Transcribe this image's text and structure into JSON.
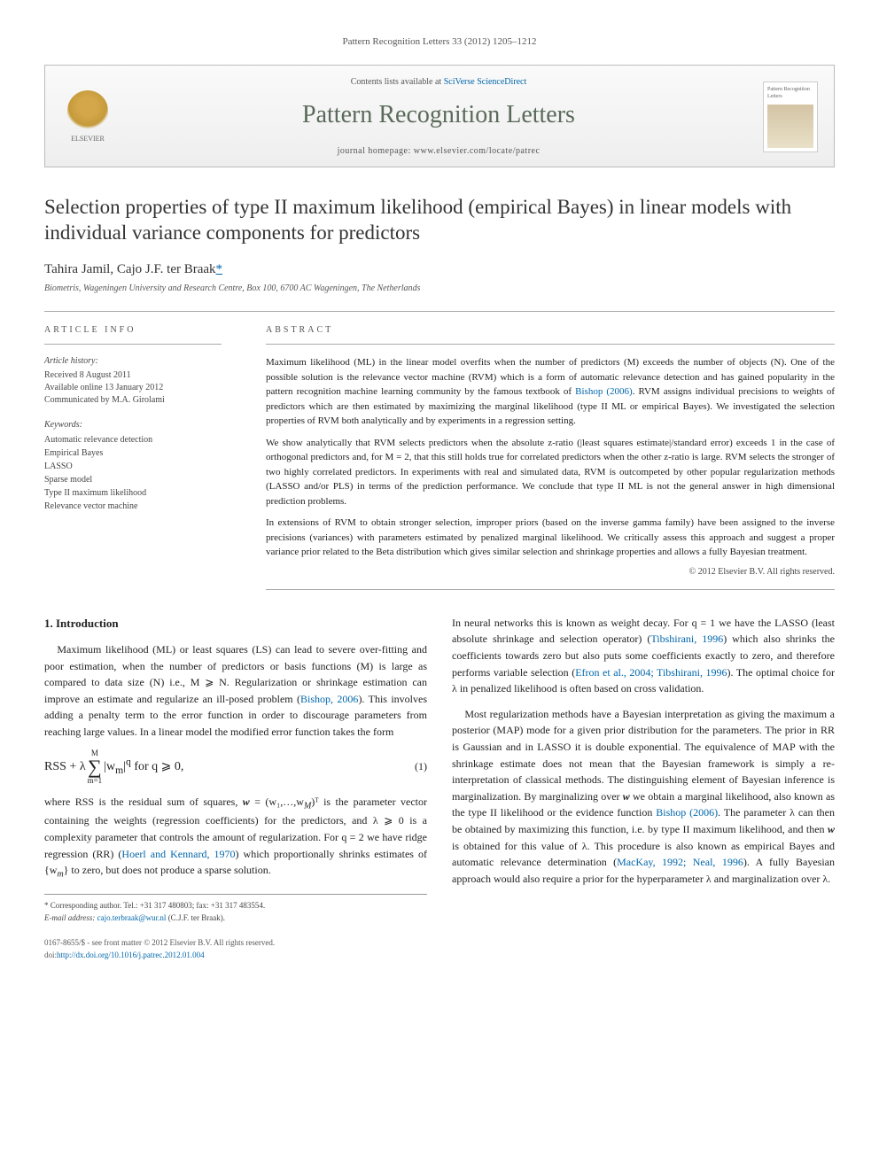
{
  "citation": "Pattern Recognition Letters 33 (2012) 1205–1212",
  "header": {
    "contents_prefix": "Contents lists available at ",
    "contents_link": "SciVerse ScienceDirect",
    "journal": "Pattern Recognition Letters",
    "homepage_label": "journal homepage: www.elsevier.com/locate/patrec",
    "publisher_logo": "ELSEVIER",
    "cover_label": "Pattern Recognition Letters"
  },
  "title": "Selection properties of type II maximum likelihood (empirical Bayes) in linear models with individual variance components for predictors",
  "authors": "Tahira Jamil, Cajo J.F. ter Braak",
  "corr_marker": "*",
  "affiliation": "Biometris, Wageningen University and Research Centre, Box 100, 6700 AC Wageningen, The Netherlands",
  "article_info_head": "ARTICLE INFO",
  "abstract_head": "ABSTRACT",
  "history_label": "Article history:",
  "history": {
    "received": "Received 8 August 2011",
    "online": "Available online 13 January 2012",
    "communicated": "Communicated by M.A. Girolami"
  },
  "keywords_label": "Keywords:",
  "keywords": [
    "Automatic relevance detection",
    "Empirical Bayes",
    "LASSO",
    "Sparse model",
    "Type II maximum likelihood",
    "Relevance vector machine"
  ],
  "abstract": {
    "p1a": "Maximum likelihood (ML) in the linear model overfits when the number of predictors (M) exceeds the number of objects (N). One of the possible solution is the relevance vector machine (RVM) which is a form of automatic relevance detection and has gained popularity in the pattern recognition machine learning community by the famous textbook of ",
    "p1_link": "Bishop (2006)",
    "p1b": ". RVM assigns individual precisions to weights of predictors which are then estimated by maximizing the marginal likelihood (type II ML or empirical Bayes). We investigated the selection properties of RVM both analytically and by experiments in a regression setting.",
    "p2": "We show analytically that RVM selects predictors when the absolute z-ratio (|least squares estimate|/standard error) exceeds 1 in the case of orthogonal predictors and, for M = 2, that this still holds true for correlated predictors when the other z-ratio is large. RVM selects the stronger of two highly correlated predictors. In experiments with real and simulated data, RVM is outcompeted by other popular regularization methods (LASSO and/or PLS) in terms of the prediction performance. We conclude that type II ML is not the general answer in high dimensional prediction problems.",
    "p3": "In extensions of RVM to obtain stronger selection, improper priors (based on the inverse gamma family) have been assigned to the inverse precisions (variances) with parameters estimated by penalized marginal likelihood. We critically assess this approach and suggest a proper variance prior related to the Beta distribution which gives similar selection and shrinkage properties and allows a fully Bayesian treatment."
  },
  "copyright": "© 2012 Elsevier B.V. All rights reserved.",
  "section1_head": "1. Introduction",
  "left": {
    "p1a": "Maximum likelihood (ML) or least squares (LS) can lead to severe over-fitting and poor estimation, when the number of predictors or basis functions (M) is large as compared to data size (N) i.e., M ⩾ N. Regularization or shrinkage estimation can improve an estimate and regularize an ill-posed problem (",
    "p1_link": "Bishop, 2006",
    "p1b": "). This involves adding a penalty term to the error function in order to discourage parameters from reaching large values. In a linear model the modified error function takes the form",
    "eq_rss": "RSS",
    "eq_lambda": " + λ",
    "eq_sum_top": "M",
    "eq_sum_bot": "m=1",
    "eq_body": "|w",
    "eq_sub": "m",
    "eq_exp": "q",
    "eq_cond": "   for q ⩾ 0,",
    "eq_num": "(1)",
    "p2a": "where RSS is the residual sum of squares, ",
    "p2_w": "w",
    "p2b": " = (w₁,…,w",
    "p2_M": "M",
    "p2c": ")ᵀ is the parameter vector containing the weights (regression coefficients) for the predictors, and λ ⩾ 0 is a complexity parameter that controls the amount of regularization. For q = 2 we have ridge regression (RR) (",
    "p2_link": "Hoerl and Kennard, 1970",
    "p2d": ") which proportionally shrinks estimates of {w",
    "p2_m": "m",
    "p2e": "} to zero, but does not produce a sparse solution."
  },
  "right": {
    "p1a": "In neural networks this is known as weight decay. For q = 1 we have the LASSO (least absolute shrinkage and selection operator) (",
    "p1_link1": "Tibshirani, 1996",
    "p1b": ") which also shrinks the coefficients towards zero but also puts some coefficients exactly to zero, and therefore performs variable selection (",
    "p1_link2": "Efron et al., 2004; Tibshirani, 1996",
    "p1c": "). The optimal choice for λ in penalized likelihood is often based on cross validation.",
    "p2a": "Most regularization methods have a Bayesian interpretation as giving the maximum a posterior (MAP) mode for a given prior distribution for the parameters. The prior in RR is Gaussian and in LASSO it is double exponential. The equivalence of MAP with the shrinkage estimate does not mean that the Bayesian framework is simply a re-interpretation of classical methods. The distinguishing element of Bayesian inference is marginalization. By marginalizing over ",
    "p2_w": "w",
    "p2b": " we obtain a marginal likelihood, also known as the type II likelihood or the evidence function ",
    "p2_link1": "Bishop (2006)",
    "p2c": ". The parameter λ can then be obtained by maximizing this function, i.e. by type II maximum likelihood, and then ",
    "p2_w2": "w",
    "p2d": " is obtained for this value of λ. This procedure is also known as empirical Bayes and automatic relevance determination (",
    "p2_link2": "MacKay, 1992; Neal, 1996",
    "p2e": "). A fully Bayesian approach would also require a prior for the hyperparameter λ and marginalization over λ."
  },
  "footnotes": {
    "corr": "* Corresponding author. Tel.: +31 317 480803; fax: +31 317 483554.",
    "email_label": "E-mail address: ",
    "email": "cajo.terbraak@wur.nl",
    "email_suffix": " (C.J.F. ter Braak)."
  },
  "bottom": {
    "issn": "0167-8655/$ - see front matter © 2012 Elsevier B.V. All rights reserved.",
    "doi_label": "doi:",
    "doi": "http://dx.doi.org/10.1016/j.patrec.2012.01.004"
  }
}
